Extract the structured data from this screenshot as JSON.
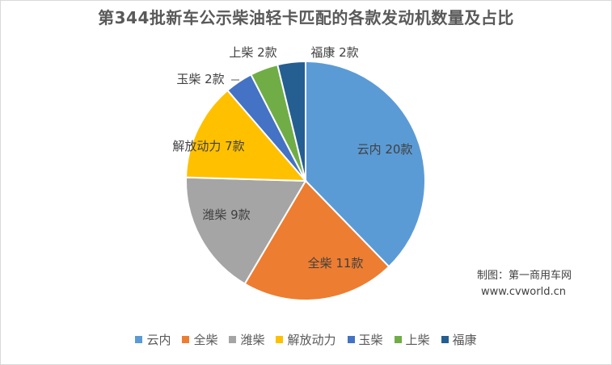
{
  "chart_data": {
    "type": "pie",
    "title": "第344批新车公示柴油轻卡匹配的各款发动机数量及占比",
    "categories": [
      "云内",
      "全柴",
      "潍柴",
      "解放动力",
      "玉柴",
      "上柴",
      "福康"
    ],
    "values": [
      20,
      11,
      9,
      7,
      2,
      2,
      2
    ],
    "data_labels": [
      "云内 20款",
      "全柴 11款",
      "潍柴 9款",
      "解放动力 7款",
      "玉柴 2款",
      "上柴 2款",
      "福康 2款"
    ],
    "colors": [
      "#5b9bd5",
      "#ed7d31",
      "#a5a5a5",
      "#ffc000",
      "#4472c4",
      "#70ad47",
      "#255e91"
    ],
    "start_angle_deg": 0,
    "direction": "clockwise",
    "legend_position": "bottom"
  },
  "credit": {
    "line1": "制图：第一商用车网",
    "line2": "www.cvworld.cn"
  }
}
